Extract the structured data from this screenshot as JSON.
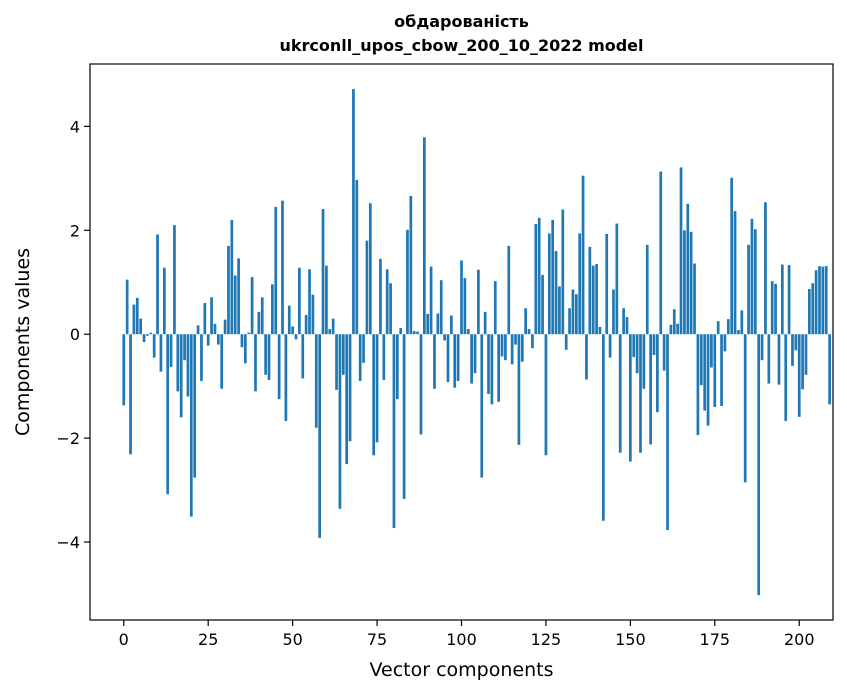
{
  "chart_data": {
    "type": "bar",
    "title_line1": "обдарованість",
    "title_line2": "ukrconll_upos_cbow_200_10_2022 model",
    "xlabel": "Vector components",
    "ylabel": "Components values",
    "xlim": [
      -10,
      210
    ],
    "ylim": [
      -5.5,
      5.2
    ],
    "xticks": [
      0,
      25,
      50,
      75,
      100,
      125,
      150,
      175,
      200
    ],
    "yticks": [
      -4,
      -2,
      0,
      2,
      4
    ],
    "ytick_labels": [
      "−4",
      "−2",
      "0",
      "2",
      "4"
    ],
    "bar_color": "#1f77b4",
    "values": [
      -1.37,
      1.05,
      -2.31,
      0.57,
      0.7,
      0.3,
      -0.15,
      -0.03,
      0.03,
      -0.45,
      1.92,
      -0.72,
      1.28,
      -3.08,
      -0.63,
      2.1,
      -1.1,
      -1.6,
      -0.5,
      -1.2,
      -3.51,
      -2.76,
      0.17,
      -0.9,
      0.6,
      -0.22,
      0.71,
      0.2,
      -0.2,
      -1.05,
      0.28,
      1.7,
      2.2,
      1.13,
      1.46,
      -0.25,
      -0.56,
      0.03,
      1.1,
      -1.1,
      0.43,
      0.71,
      -0.78,
      -0.88,
      0.96,
      2.45,
      -1.25,
      2.57,
      -1.67,
      0.55,
      0.15,
      -0.1,
      1.28,
      -0.85,
      0.37,
      1.25,
      0.76,
      -1.8,
      -3.92,
      2.41,
      1.32,
      0.1,
      0.3,
      -1.07,
      -3.36,
      -0.78,
      -2.5,
      -2.06,
      4.72,
      2.97,
      -0.9,
      -0.55,
      1.8,
      2.52,
      -2.33,
      -2.08,
      1.45,
      -0.88,
      1.25,
      0.98,
      -3.73,
      -1.25,
      0.12,
      -3.17,
      2.01,
      2.66,
      0.06,
      0.05,
      -1.93,
      3.79,
      0.39,
      1.3,
      -1.05,
      0.4,
      1.04,
      -0.12,
      -0.92,
      0.36,
      -1.03,
      -0.9,
      1.42,
      1.08,
      0.1,
      -0.95,
      -0.75,
      1.24,
      -2.76,
      0.43,
      -1.15,
      -1.35,
      1.02,
      -1.3,
      -0.43,
      -0.5,
      1.7,
      -0.58,
      -0.2,
      -2.13,
      -0.53,
      0.5,
      0.1,
      -0.27,
      2.12,
      2.24,
      1.14,
      -2.33,
      1.94,
      2.2,
      1.6,
      0.92,
      2.4,
      -0.3,
      0.5,
      0.86,
      0.77,
      1.94,
      3.05,
      -0.87,
      1.68,
      1.32,
      1.35,
      0.14,
      -3.59,
      1.93,
      -0.45,
      0.86,
      2.13,
      -2.28,
      0.5,
      0.33,
      -2.45,
      -0.44,
      -0.75,
      -2.28,
      -1.05,
      1.72,
      -2.12,
      -0.4,
      -1.5,
      3.13,
      -0.7,
      -3.77,
      0.18,
      0.48,
      0.2,
      3.21,
      2.0,
      2.51,
      1.97,
      1.36,
      -1.94,
      -0.98,
      -1.47,
      -1.76,
      -0.64,
      -1.4,
      0.25,
      -1.38,
      -0.33,
      0.29,
      3.01,
      2.37,
      0.08,
      0.46,
      -2.85,
      1.72,
      2.22,
      2.02,
      -5.02,
      -0.5,
      2.54,
      -0.95,
      1.02,
      0.97,
      -0.97,
      1.34,
      -1.67,
      1.33,
      -0.61,
      -0.31,
      -1.59,
      -1.06,
      -0.78,
      0.87,
      0.98,
      1.23,
      1.31,
      1.3,
      1.31,
      -1.35
    ]
  }
}
